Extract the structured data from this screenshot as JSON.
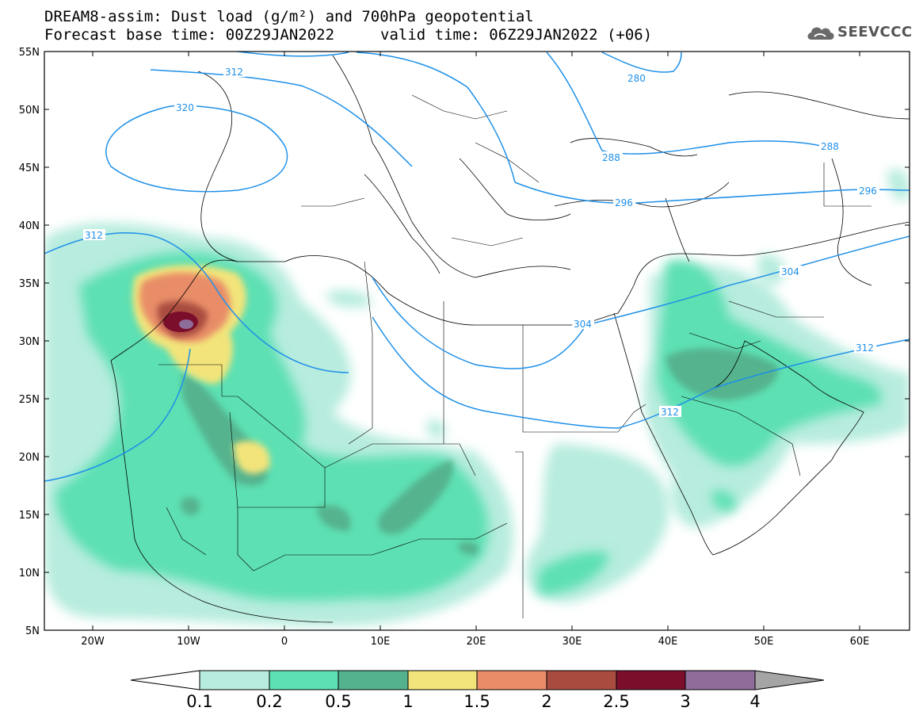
{
  "header": {
    "title_line_1": "DREAM8-assim: Dust load (g/m²) and 700hPa geopotential",
    "title_line_2": "Forecast base time: 00Z29JAN2022",
    "valid_time": "valid time: 06Z29JAN2022 (+06)"
  },
  "logo": {
    "text": "SEEVCCC",
    "icon": "cloud-icon"
  },
  "map": {
    "lat_labels": [
      "55N",
      "50N",
      "45N",
      "40N",
      "35N",
      "30N",
      "25N",
      "20N",
      "15N",
      "10N",
      "5N"
    ],
    "lon_labels": [
      "20W",
      "10W",
      "0",
      "10E",
      "20E",
      "30E",
      "40E",
      "50E",
      "60E"
    ],
    "contour_labels": [
      "312",
      "320",
      "312",
      "280",
      "288",
      "288",
      "296",
      "296",
      "304",
      "304",
      "312",
      "312"
    ],
    "contour_color": "#1e90e8"
  },
  "legend": {
    "levels": [
      "0.1",
      "0.2",
      "0.5",
      "1",
      "1.5",
      "2",
      "2.5",
      "3",
      "4"
    ],
    "colors": [
      "#ffffff",
      "#b7ecde",
      "#5de0b3",
      "#54b38e",
      "#f2e47a",
      "#e98d68",
      "#a94c3f",
      "#7a0e2b",
      "#8e6d9b",
      "#a5a5a5"
    ]
  }
}
